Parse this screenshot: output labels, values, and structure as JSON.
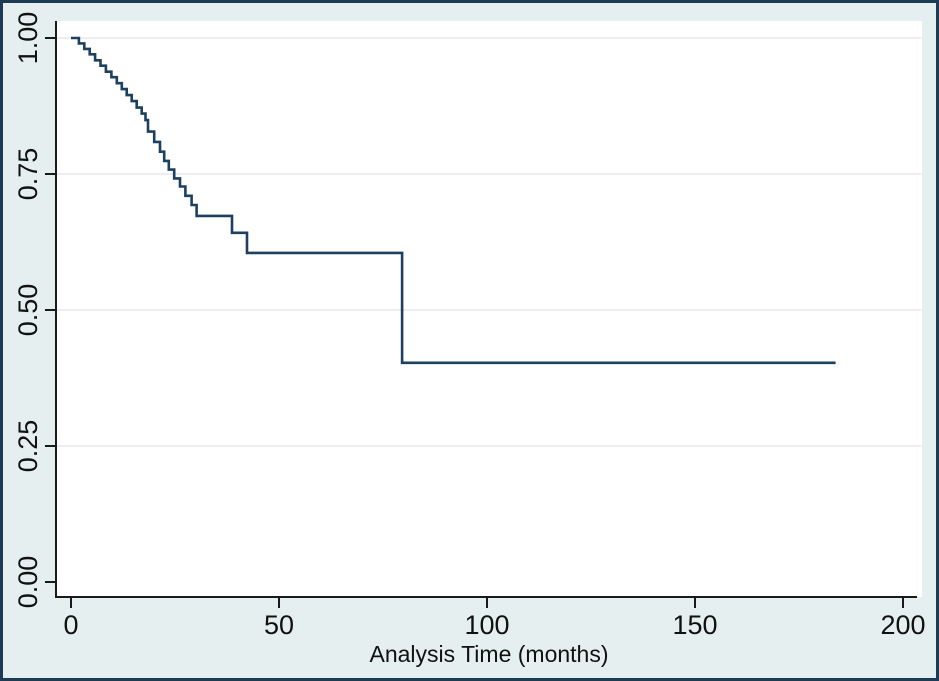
{
  "figure": {
    "description": "Kaplan-Meier survival estimate plot (Stata style)",
    "title": ""
  },
  "chart_data": {
    "type": "line",
    "chart_style": "kaplan-meier-survival-step",
    "title": "",
    "xlabel": "Analysis Time (months)",
    "ylabel": "",
    "xlim": [
      0,
      200
    ],
    "ylim": [
      0.0,
      1.0
    ],
    "x_ticks": {
      "values": [
        0,
        50,
        100,
        150,
        200
      ],
      "labels": [
        "0",
        "50",
        "100",
        "150",
        "200"
      ]
    },
    "y_ticks": {
      "values": [
        0.0,
        0.25,
        0.5,
        0.75,
        1.0
      ],
      "labels": [
        "0.00",
        "0.25",
        "0.50",
        "0.75",
        "1.00"
      ]
    },
    "grid": "horizontal-only",
    "gridline_levels": [
      0.25,
      0.5,
      0.75,
      1.0
    ],
    "legend": "none",
    "colors": {
      "line": "#1e4060",
      "axis": "#1a1a1a",
      "tick_label": "#111111",
      "gridline": "#eceef1",
      "plot_background": "#ffffff",
      "outer_background": "#e5efef",
      "frame_border": "#1d3b55"
    },
    "series": [
      {
        "name": "survival-estimate",
        "steps": [
          [
            0.0,
            1.0
          ],
          [
            1.9,
            0.99
          ],
          [
            3.2,
            0.98
          ],
          [
            4.5,
            0.97
          ],
          [
            5.8,
            0.959
          ],
          [
            7.1,
            0.949
          ],
          [
            8.4,
            0.938
          ],
          [
            9.7,
            0.928
          ],
          [
            11.0,
            0.917
          ],
          [
            12.2,
            0.906
          ],
          [
            13.4,
            0.895
          ],
          [
            14.6,
            0.884
          ],
          [
            15.8,
            0.872
          ],
          [
            17.0,
            0.861
          ],
          [
            17.9,
            0.849
          ],
          [
            18.5,
            0.828
          ],
          [
            20.0,
            0.809
          ],
          [
            21.4,
            0.791
          ],
          [
            22.4,
            0.774
          ],
          [
            23.5,
            0.758
          ],
          [
            24.8,
            0.742
          ],
          [
            26.2,
            0.727
          ],
          [
            27.5,
            0.71
          ],
          [
            29.0,
            0.693
          ],
          [
            30.2,
            0.673
          ],
          [
            38.7,
            0.642
          ],
          [
            42.3,
            0.605
          ],
          [
            79.6,
            0.403
          ],
          [
            183.8,
            0.403
          ]
        ]
      }
    ]
  }
}
